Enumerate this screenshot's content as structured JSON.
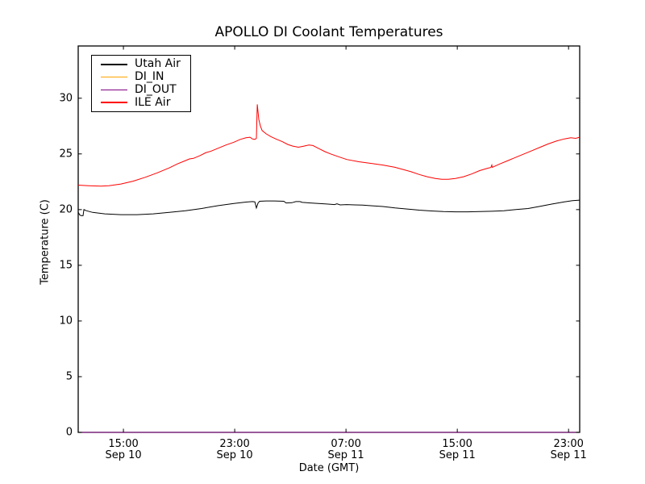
{
  "chart_data": {
    "type": "line",
    "title": "APOLLO DI Coolant Temperatures",
    "xlabel": "Date (GMT)",
    "ylabel": "Temperature (C)",
    "grid": false,
    "x_unit": "hours since Sep 10 00:00 GMT",
    "xlim": [
      11.75,
      47.8
    ],
    "ylim": [
      0,
      34.69
    ],
    "xticks": {
      "values": [
        15,
        23,
        31,
        39,
        47
      ],
      "labels": [
        [
          "15:00",
          "Sep 10"
        ],
        [
          "23:00",
          "Sep 10"
        ],
        [
          "07:00",
          "Sep 11"
        ],
        [
          "15:00",
          "Sep 11"
        ],
        [
          "23:00",
          "Sep 11"
        ]
      ]
    },
    "yticks": {
      "values": [
        0,
        5,
        10,
        15,
        20,
        25,
        30
      ],
      "labels": [
        "0",
        "5",
        "10",
        "15",
        "20",
        "25",
        "30"
      ]
    },
    "legend": {
      "position": "upper left",
      "entries": [
        "Utah Air",
        "DI_IN",
        "DI_OUT",
        "ILE Air"
      ]
    },
    "series": [
      {
        "name": "DI_IN",
        "color": "#ffa500",
        "points": [
          [
            11.75,
            0
          ],
          [
            47.8,
            0
          ]
        ]
      },
      {
        "name": "DI_OUT",
        "color": "#800080",
        "points": [
          [
            11.75,
            0
          ],
          [
            47.8,
            0
          ]
        ]
      },
      {
        "name": "Utah Air",
        "color": "#000000",
        "points": [
          [
            11.75,
            19.75
          ],
          [
            11.87,
            19.5
          ],
          [
            11.98,
            19.45
          ],
          [
            12.1,
            19.45
          ],
          [
            12.16,
            20.0
          ],
          [
            12.33,
            19.9
          ],
          [
            12.79,
            19.75
          ],
          [
            13.66,
            19.62
          ],
          [
            14.82,
            19.55
          ],
          [
            15.98,
            19.55
          ],
          [
            17.14,
            19.62
          ],
          [
            18.3,
            19.75
          ],
          [
            19.46,
            19.9
          ],
          [
            20.62,
            20.1
          ],
          [
            21.78,
            20.35
          ],
          [
            22.94,
            20.55
          ],
          [
            23.81,
            20.68
          ],
          [
            24.27,
            20.72
          ],
          [
            24.45,
            20.7
          ],
          [
            24.56,
            20.15
          ],
          [
            24.68,
            20.6
          ],
          [
            24.79,
            20.75
          ],
          [
            25.26,
            20.78
          ],
          [
            25.84,
            20.78
          ],
          [
            26.53,
            20.75
          ],
          [
            26.7,
            20.6
          ],
          [
            27.11,
            20.62
          ],
          [
            27.4,
            20.72
          ],
          [
            27.69,
            20.72
          ],
          [
            27.86,
            20.65
          ],
          [
            28.44,
            20.6
          ],
          [
            29.02,
            20.55
          ],
          [
            29.6,
            20.5
          ],
          [
            30.18,
            20.45
          ],
          [
            30.35,
            20.52
          ],
          [
            30.58,
            20.42
          ],
          [
            31.05,
            20.45
          ],
          [
            31.63,
            20.42
          ],
          [
            32.2,
            20.4
          ],
          [
            32.78,
            20.35
          ],
          [
            33.65,
            20.28
          ],
          [
            34.52,
            20.15
          ],
          [
            35.39,
            20.05
          ],
          [
            36.26,
            19.95
          ],
          [
            37.13,
            19.88
          ],
          [
            38.0,
            19.82
          ],
          [
            38.87,
            19.8
          ],
          [
            39.74,
            19.8
          ],
          [
            40.61,
            19.82
          ],
          [
            41.48,
            19.85
          ],
          [
            42.35,
            19.9
          ],
          [
            43.22,
            20.0
          ],
          [
            44.09,
            20.1
          ],
          [
            44.96,
            20.3
          ],
          [
            45.83,
            20.5
          ],
          [
            46.7,
            20.7
          ],
          [
            47.28,
            20.8
          ],
          [
            47.8,
            20.85
          ]
        ]
      },
      {
        "name": "ILE Air",
        "color": "#ff0000",
        "points": [
          [
            11.75,
            22.2
          ],
          [
            12.5,
            22.15
          ],
          [
            13.37,
            22.1
          ],
          [
            13.95,
            22.15
          ],
          [
            14.82,
            22.3
          ],
          [
            15.69,
            22.55
          ],
          [
            16.56,
            22.9
          ],
          [
            17.43,
            23.3
          ],
          [
            18.3,
            23.75
          ],
          [
            18.88,
            24.1
          ],
          [
            19.46,
            24.4
          ],
          [
            19.75,
            24.55
          ],
          [
            20.04,
            24.6
          ],
          [
            20.5,
            24.85
          ],
          [
            20.91,
            25.1
          ],
          [
            21.31,
            25.25
          ],
          [
            21.78,
            25.5
          ],
          [
            22.36,
            25.8
          ],
          [
            22.94,
            26.05
          ],
          [
            23.4,
            26.3
          ],
          [
            23.81,
            26.45
          ],
          [
            24.1,
            26.5
          ],
          [
            24.27,
            26.35
          ],
          [
            24.45,
            26.3
          ],
          [
            24.56,
            26.4
          ],
          [
            24.62,
            29.45
          ],
          [
            24.73,
            28.1
          ],
          [
            24.85,
            27.5
          ],
          [
            24.97,
            27.1
          ],
          [
            25.26,
            26.8
          ],
          [
            25.61,
            26.55
          ],
          [
            25.95,
            26.35
          ],
          [
            26.42,
            26.1
          ],
          [
            26.82,
            25.85
          ],
          [
            27.17,
            25.7
          ],
          [
            27.58,
            25.6
          ],
          [
            27.98,
            25.7
          ],
          [
            28.33,
            25.8
          ],
          [
            28.62,
            25.75
          ],
          [
            29.02,
            25.5
          ],
          [
            29.49,
            25.2
          ],
          [
            29.89,
            25.0
          ],
          [
            30.47,
            24.75
          ],
          [
            31.05,
            24.5
          ],
          [
            31.92,
            24.3
          ],
          [
            32.78,
            24.15
          ],
          [
            33.65,
            24.0
          ],
          [
            34.52,
            23.8
          ],
          [
            35.1,
            23.6
          ],
          [
            35.68,
            23.4
          ],
          [
            36.26,
            23.15
          ],
          [
            36.84,
            22.95
          ],
          [
            37.42,
            22.8
          ],
          [
            37.88,
            22.72
          ],
          [
            38.35,
            22.72
          ],
          [
            38.87,
            22.8
          ],
          [
            39.45,
            22.95
          ],
          [
            40.03,
            23.2
          ],
          [
            40.61,
            23.5
          ],
          [
            41.19,
            23.72
          ],
          [
            41.42,
            23.78
          ],
          [
            41.48,
            24.0
          ],
          [
            41.52,
            23.8
          ],
          [
            42.06,
            24.1
          ],
          [
            42.64,
            24.4
          ],
          [
            43.22,
            24.7
          ],
          [
            43.8,
            25.0
          ],
          [
            44.38,
            25.3
          ],
          [
            44.96,
            25.6
          ],
          [
            45.54,
            25.9
          ],
          [
            46.12,
            26.15
          ],
          [
            46.7,
            26.35
          ],
          [
            47.16,
            26.45
          ],
          [
            47.51,
            26.4
          ],
          [
            47.8,
            26.5
          ]
        ]
      }
    ]
  }
}
